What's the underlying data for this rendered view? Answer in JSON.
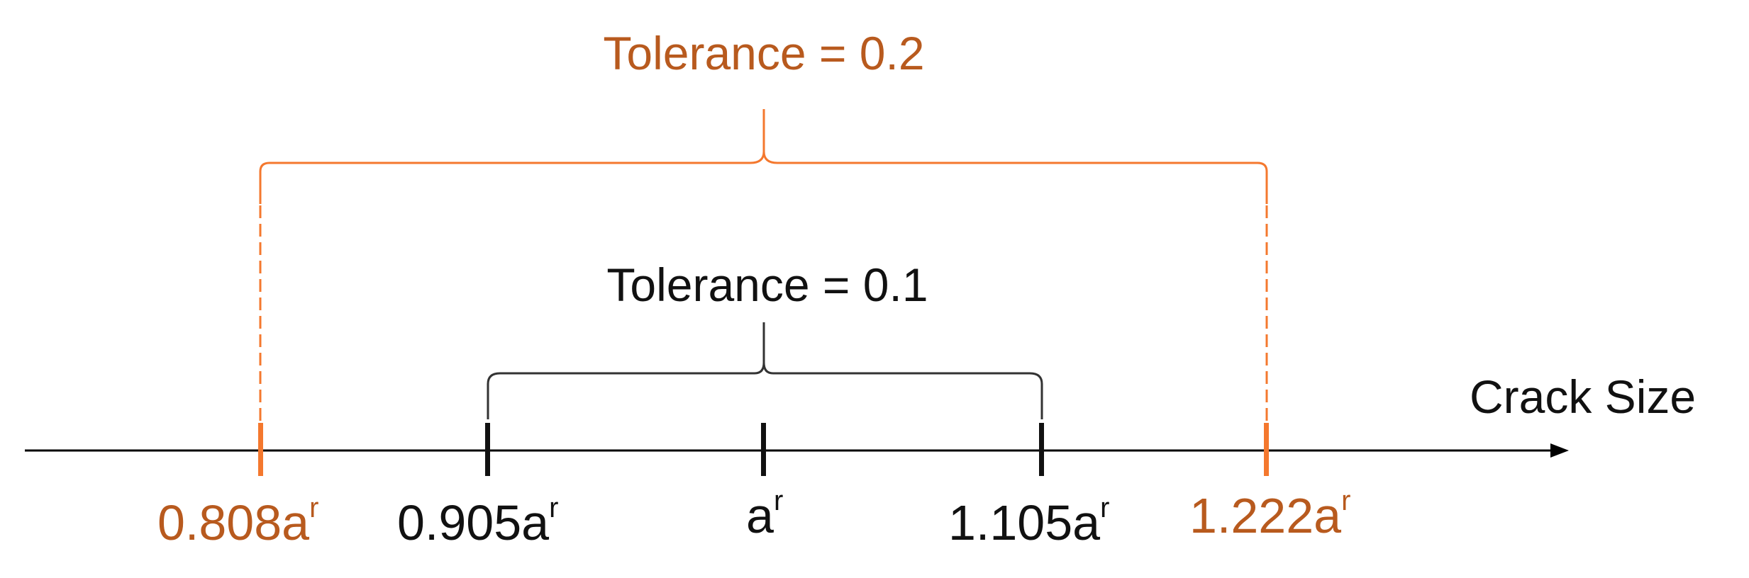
{
  "colors": {
    "outer": "#f4782e",
    "outer_text": "#b85a1e",
    "inner": "#111111",
    "inner_bracket": "#333333",
    "axis": "#000000"
  },
  "axis": {
    "label": "Crack Size"
  },
  "outer_bracket": {
    "label": "Tolerance = 0.2"
  },
  "inner_bracket": {
    "label": "Tolerance = 0.1"
  },
  "ticks": [
    {
      "base": "0.808a",
      "sup": "r",
      "value": 0.808,
      "group": "outer"
    },
    {
      "base": "0.905a",
      "sup": "r",
      "value": 0.905,
      "group": "inner"
    },
    {
      "base": "a",
      "sup": "r",
      "value": 1.0,
      "group": "inner"
    },
    {
      "base": "1.105a",
      "sup": "r",
      "value": 1.105,
      "group": "inner"
    },
    {
      "base": "1.222a",
      "sup": "r",
      "value": 1.222,
      "group": "outer"
    }
  ]
}
